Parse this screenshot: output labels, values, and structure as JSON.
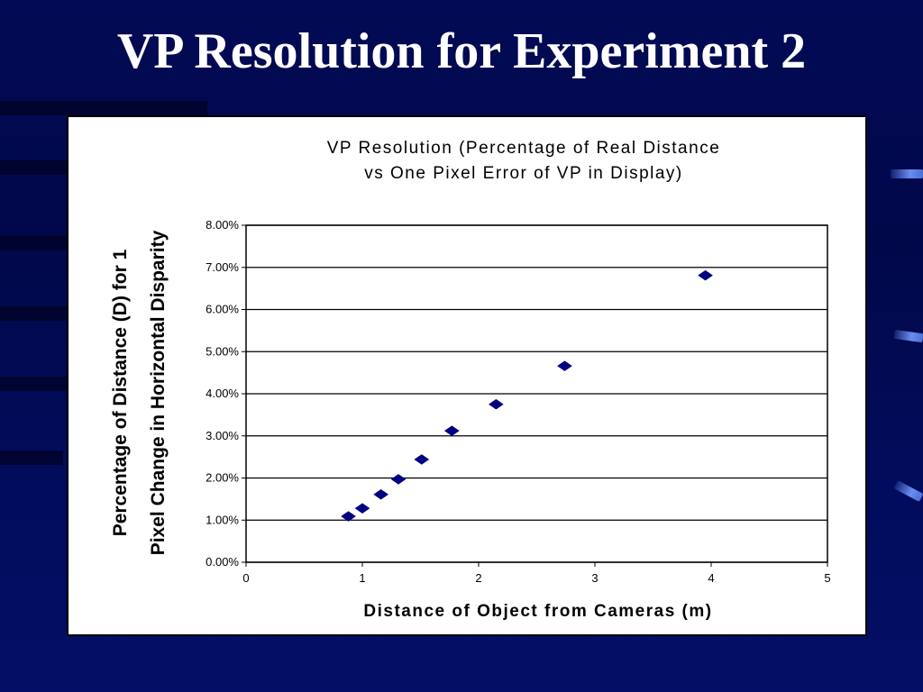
{
  "slide": {
    "title": "VP Resolution for Experiment 2",
    "colors": {
      "background": "#020a55",
      "title_text": "#ffffff",
      "accent": "#6a8df0"
    }
  },
  "chart_data": {
    "type": "scatter",
    "title_lines": [
      "VP Resolution (Percentage of Real Distance",
      "vs One Pixel Error of VP in Display)"
    ],
    "xlabel": "Distance of Object from Cameras  (m)",
    "ylabel_lines": [
      "Percentage of Distance (D) for 1",
      "Pixel Change in Horizontal Disparity"
    ],
    "xlim": [
      0,
      5
    ],
    "ylim": [
      0,
      0.08
    ],
    "x_ticks": [
      0,
      1,
      2,
      3,
      4,
      5
    ],
    "x_tick_labels": [
      "0",
      "1",
      "2",
      "3",
      "4",
      "5"
    ],
    "y_ticks": [
      0,
      0.01,
      0.02,
      0.03,
      0.04,
      0.05,
      0.06,
      0.07,
      0.08
    ],
    "y_tick_labels": [
      "0.00%",
      "1.00%",
      "2.00%",
      "3.00%",
      "4.00%",
      "5.00%",
      "6.00%",
      "7.00%",
      "8.00%"
    ],
    "grid": "horizontal",
    "marker": "diamond",
    "marker_color": "#000080",
    "series": [
      {
        "x": [
          0.88,
          1.0,
          1.16,
          1.31,
          1.51,
          1.77,
          2.15,
          2.74,
          3.95
        ],
        "y": [
          0.0109,
          0.0128,
          0.0161,
          0.0197,
          0.0244,
          0.0312,
          0.0375,
          0.0466,
          0.0681
        ]
      }
    ]
  }
}
